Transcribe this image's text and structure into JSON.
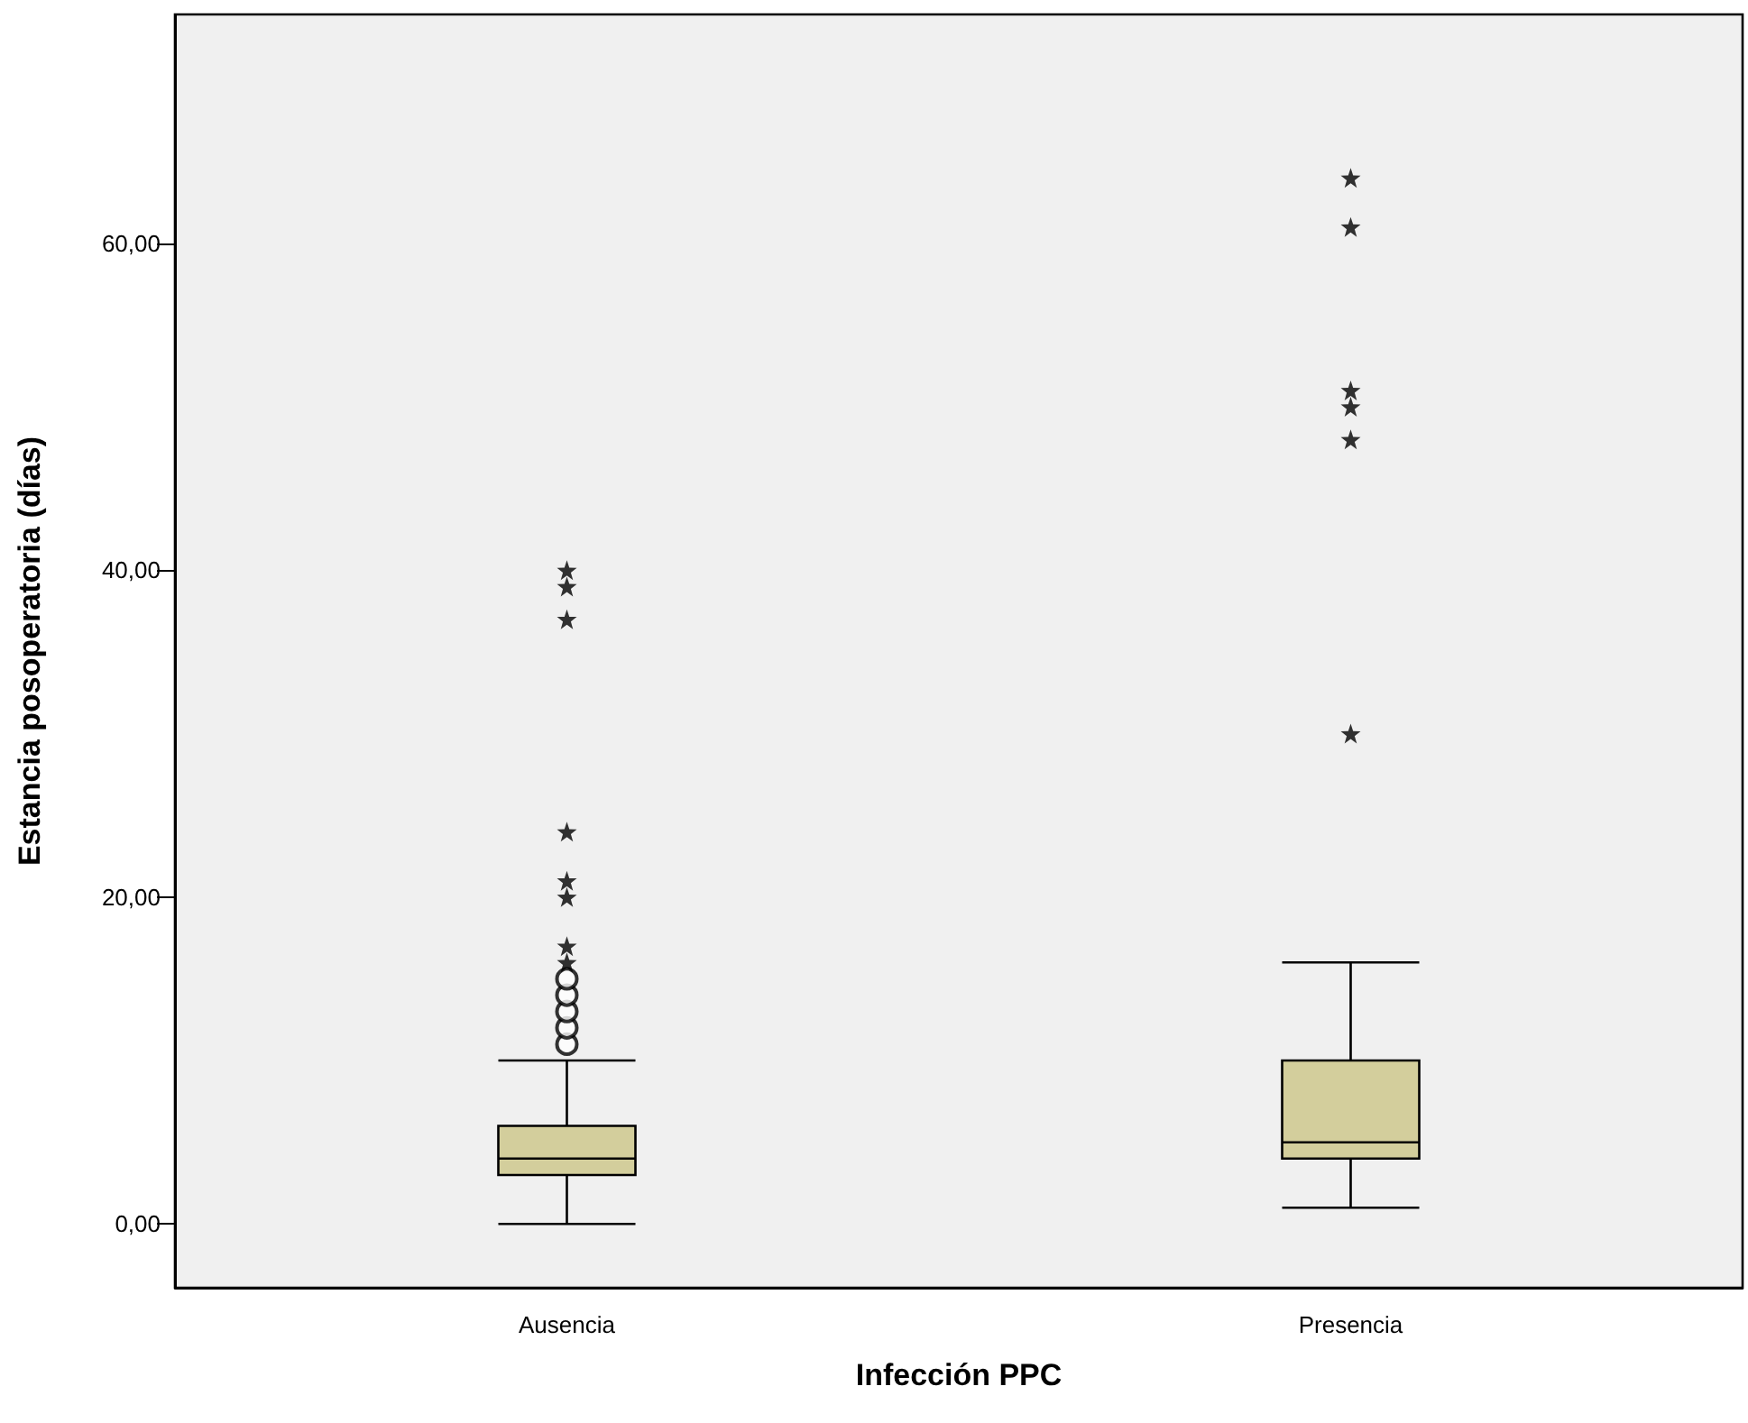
{
  "chart_data": {
    "type": "box",
    "xlabel": "Infección PPC",
    "ylabel": "Estancia posoperatoria (días)",
    "categories": [
      "Ausencia",
      "Presencia"
    ],
    "color": "#d3ce9c",
    "boxes": [
      {
        "low": 0,
        "q1": 3,
        "median": 4,
        "q3": 6,
        "high": 10,
        "outliers": [
          11,
          12,
          13,
          14,
          15
        ]
      },
      {
        "low": 1,
        "q1": 4,
        "median": 5,
        "q3": 10,
        "high": 16
      }
    ],
    "series": [
      {
        "type": "scatter",
        "marker": "star",
        "color": "#000000",
        "x": [
          "Ausencia",
          "Ausencia",
          "Ausencia",
          "Ausencia",
          "Ausencia",
          "Ausencia",
          "Ausencia",
          "Ausencia",
          "Presencia",
          "Presencia",
          "Presencia",
          "Presencia",
          "Presencia",
          "Presencia"
        ],
        "values": [
          16,
          17,
          20,
          21,
          24,
          37,
          39,
          40,
          30,
          48,
          50,
          51,
          61,
          64
        ]
      }
    ],
    "ylim": [
      -3.9,
      74
    ],
    "yticks": [
      {
        "value": 0,
        "label": "0,00"
      },
      {
        "value": 20,
        "label": "20,00"
      },
      {
        "value": 40,
        "label": "40,00"
      },
      {
        "value": 60,
        "label": "60,00"
      }
    ],
    "grid": false
  }
}
